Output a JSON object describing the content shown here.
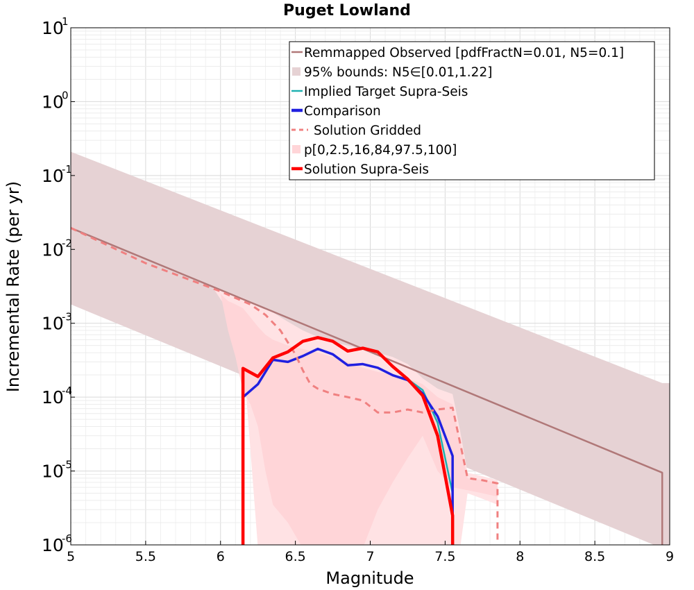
{
  "chart_data": {
    "type": "line",
    "title": "Puget Lowland",
    "xlabel": "Magnitude",
    "ylabel": "Incremental Rate (per yr)",
    "xlim": [
      5,
      9
    ],
    "ylim": [
      1e-06,
      10
    ],
    "yscale": "log",
    "grid": true,
    "legend_position": "top-right",
    "x_ticks": [
      "5",
      "5.5",
      "6",
      "6.5",
      "7",
      "7.5",
      "8",
      "8.5",
      "9"
    ],
    "y_ticks": [
      {
        "base": "10",
        "exp": "-6"
      },
      {
        "base": "10",
        "exp": "-5"
      },
      {
        "base": "10",
        "exp": "-4"
      },
      {
        "base": "10",
        "exp": "-3"
      },
      {
        "base": "10",
        "exp": "-2"
      },
      {
        "base": "10",
        "exp": "-1"
      },
      {
        "base": "10",
        "exp": "0"
      },
      {
        "base": "10",
        "exp": "1"
      }
    ],
    "colors": {
      "observed": "#b07878",
      "bounds_fill": "#e6d2d4",
      "implied": "#1fb0b0",
      "comparison": "#2020e0",
      "gridded": "#f08080",
      "solution_fill": "#ffd5d8",
      "solution": "#ff0000"
    },
    "bounds_95": {
      "x": [
        5.0,
        8.95,
        8.95,
        9.0
      ],
      "upper": [
        0.21,
        0.000155,
        0.000155,
        0.000155
      ],
      "lower": [
        0.0018,
        9e-07,
        9e-07,
        9e-07
      ]
    },
    "percentile_band_outer": {
      "x": [
        5.95,
        6.05,
        6.15,
        6.25,
        6.35,
        6.45,
        6.55,
        6.65,
        6.75,
        6.85,
        6.95,
        7.05,
        7.15,
        7.25,
        7.35,
        7.45,
        7.55,
        7.6,
        7.65,
        7.75,
        7.85
      ],
      "upper": [
        0.003,
        0.0026,
        0.0022,
        0.0018,
        0.0014,
        0.00105,
        0.0008,
        0.00065,
        0.00055,
        0.0005,
        0.00045,
        0.0004,
        0.00035,
        0.00028,
        0.00018,
        0.00013,
        0.00011,
        3.5e-05,
        9.5e-06,
        8.5e-06,
        7.5e-06
      ],
      "lower": [
        0.003,
        0.0015,
        0.0004,
        9e-07,
        9e-07,
        9e-07,
        9e-07,
        9e-07,
        9e-07,
        9e-07,
        9e-07,
        9e-07,
        9e-07,
        9e-07,
        9e-07,
        9e-07,
        9e-07,
        9e-07,
        5e-06,
        4.2e-06,
        3.5e-06
      ]
    },
    "percentile_band_inner": {
      "x": [
        6.0,
        6.05,
        6.1,
        6.15,
        6.2,
        6.25,
        6.3,
        6.35,
        6.45,
        6.55,
        6.65,
        6.75,
        6.85,
        6.95,
        7.05,
        7.15,
        7.25,
        7.35,
        7.45,
        7.55,
        7.65,
        7.75,
        7.85
      ],
      "upper": [
        0.0025,
        0.002,
        0.0018,
        0.0016,
        0.0012,
        0.0009,
        0.0007,
        0.0006,
        0.0005,
        0.00045,
        0.0004,
        0.00035,
        0.0003,
        0.00025,
        0.00022,
        0.0002,
        0.00018,
        0.00015,
        0.0001,
        8e-05,
        8e-06,
        7.5e-06,
        7e-06
      ],
      "lower": [
        0.0025,
        0.0008,
        0.00035,
        0.00012,
        8e-05,
        4e-05,
        1e-05,
        3.5e-06,
        2e-06,
        9e-07,
        9e-07,
        9e-07,
        9e-07,
        9e-07,
        3e-06,
        7e-06,
        1.5e-05,
        3e-05,
        1e-05,
        6e-06,
        5.5e-06,
        5e-06,
        4.5e-06
      ]
    },
    "series": [
      {
        "name": "Remmapped Observed [pdfFractN=0.01, N5=0.1]",
        "x": [
          5.0,
          8.95,
          8.95
        ],
        "y": [
          0.0195,
          9.5e-06,
          1e-07
        ]
      },
      {
        "name": "Implied Target Supra-Seis",
        "x": [
          6.15,
          6.15,
          6.25,
          6.35,
          6.45,
          6.55,
          6.65,
          6.75,
          6.85,
          6.95,
          7.05,
          7.15,
          7.25,
          7.35,
          7.45,
          7.55,
          7.55
        ],
        "y": [
          1e-07,
          0.0001,
          0.00015,
          0.00032,
          0.0003,
          0.00036,
          0.00045,
          0.00038,
          0.00027,
          0.00028,
          0.00025,
          0.000198,
          0.000175,
          0.000125,
          4.5e-05,
          5e-06,
          1e-07
        ]
      },
      {
        "name": "Comparison",
        "x": [
          6.15,
          6.15,
          6.25,
          6.35,
          6.45,
          6.55,
          6.65,
          6.75,
          6.85,
          6.95,
          7.05,
          7.15,
          7.25,
          7.35,
          7.45,
          7.55,
          7.55
        ],
        "y": [
          1e-07,
          0.0001,
          0.00015,
          0.00032,
          0.0003,
          0.00036,
          0.00045,
          0.00038,
          0.00027,
          0.00028,
          0.00025,
          0.000198,
          0.00017,
          0.000112,
          5.5e-05,
          1.6e-05,
          1e-07
        ]
      },
      {
        "name": "Solution Gridded",
        "x": [
          5.0,
          5.5,
          6.0,
          6.1,
          6.2,
          6.3,
          6.4,
          6.45,
          6.5,
          6.55,
          6.6,
          6.65,
          6.75,
          6.85,
          6.95,
          7.05,
          7.15,
          7.25,
          7.35,
          7.45,
          7.55,
          7.65,
          7.75,
          7.85,
          7.85
        ],
        "y": [
          0.0195,
          0.0065,
          0.0027,
          0.0022,
          0.0018,
          0.0013,
          0.0008,
          0.00055,
          0.00038,
          0.00023,
          0.00015,
          0.00013,
          0.00011,
          0.0001,
          9e-05,
          6.2e-05,
          6.2e-05,
          6.8e-05,
          6.2e-05,
          6.8e-05,
          7.2e-05,
          8e-06,
          7.5e-06,
          6.8e-06,
          1e-07
        ]
      },
      {
        "name": "Solution Supra-Seis",
        "x": [
          6.15,
          6.15,
          6.25,
          6.35,
          6.45,
          6.55,
          6.65,
          6.75,
          6.85,
          6.95,
          7.05,
          7.15,
          7.25,
          7.35,
          7.45,
          7.55,
          7.55
        ],
        "y": [
          1e-07,
          0.000245,
          0.00019,
          0.00034,
          0.00041,
          0.00057,
          0.00064,
          0.00057,
          0.00042,
          0.00046,
          0.00041,
          0.00026,
          0.000175,
          0.000105,
          3e-05,
          2.5e-06,
          1e-07
        ]
      }
    ],
    "legend": [
      {
        "label": "Remmapped Observed [pdfFractN=0.01, N5=0.1]",
        "style": "line",
        "color": "#b07878"
      },
      {
        "label": "95% bounds: N5∈[0.01,1.22]",
        "style": "patch",
        "color": "#e6d2d4"
      },
      {
        "label": "Implied Target Supra-Seis",
        "style": "line",
        "color": "#1fb0b0"
      },
      {
        "label": "Comparison",
        "style": "thickline",
        "color": "#2020e0"
      },
      {
        "label": "Solution Gridded",
        "style": "dashed",
        "color": "#f08080"
      },
      {
        "label": "p[0,2.5,16,84,97.5,100]",
        "style": "patch",
        "color": "#ffd5d8"
      },
      {
        "label": "Solution Supra-Seis",
        "style": "thickline",
        "color": "#ff0000"
      }
    ]
  }
}
